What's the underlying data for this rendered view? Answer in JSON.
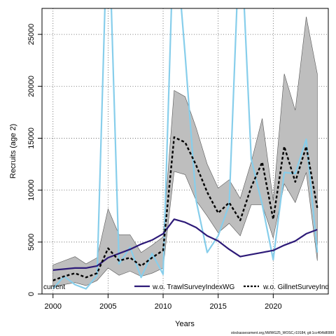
{
  "chart_data": {
    "type": "line",
    "xlabel": "Years",
    "ylabel": "Recruits (age 2)",
    "xlim": [
      1999,
      2025
    ],
    "ylim": [
      0,
      27500
    ],
    "x_ticks": [
      2000,
      2005,
      2010,
      2015,
      2020
    ],
    "y_ticks": [
      0,
      5000,
      10000,
      15000,
      20000,
      25000
    ],
    "grid": true,
    "legend_placement": "bottom",
    "x": [
      2000,
      2001,
      2002,
      2003,
      2004,
      2005,
      2006,
      2007,
      2008,
      2009,
      2010,
      2011,
      2012,
      2013,
      2014,
      2015,
      2016,
      2017,
      2018,
      2019,
      2020,
      2021,
      2022,
      2023,
      2024
    ],
    "band": {
      "upper": [
        2800,
        3200,
        3600,
        2900,
        3500,
        8200,
        5700,
        5700,
        4000,
        4700,
        5500,
        19600,
        19000,
        16000,
        12500,
        10200,
        11000,
        9200,
        12700,
        16900,
        9000,
        21200,
        17700,
        26700,
        21200
      ],
      "lower": [
        700,
        900,
        1100,
        800,
        1300,
        2500,
        1800,
        2200,
        1700,
        2000,
        2500,
        11800,
        11500,
        9000,
        7500,
        5900,
        6800,
        5600,
        8600,
        8600,
        5400,
        10600,
        8800,
        11700,
        3200
      ],
      "color": "#bebebe"
    },
    "series": [
      {
        "name": "current",
        "style": "dashed",
        "color": "#000000",
        "values": [
          1300,
          1700,
          2000,
          1600,
          2000,
          4400,
          3200,
          3500,
          2700,
          3500,
          4200,
          15100,
          14600,
          12400,
          9800,
          7800,
          8800,
          7100,
          10300,
          12700,
          7200,
          14200,
          10800,
          14200,
          8300
        ]
      },
      {
        "name": "w.o. TrawlSurveyIndexWG",
        "style": "solid",
        "color": "#2d1a78",
        "values": [
          2300,
          2400,
          2500,
          2500,
          2700,
          3500,
          3900,
          4300,
          4800,
          5200,
          5800,
          7200,
          6900,
          6400,
          5600,
          5100,
          4300,
          3600,
          3800,
          4000,
          4200,
          4700,
          5100,
          5800,
          6200
        ]
      },
      {
        "name": "w.o. GillnetSurveyIndex",
        "style": "solid",
        "color": "#87ceeb",
        "values": [
          500,
          1700,
          900,
          500,
          1800,
          38000,
          2900,
          4500,
          1600,
          3900,
          1900,
          36000,
          23000,
          9000,
          4000,
          5600,
          8600,
          36000,
          13000,
          8600,
          3300,
          11700,
          11600,
          14900,
          4000
        ]
      }
    ],
    "footer_note": "stockassessment.org,NWWG25_WOSC,r19184, git:1cc464b8086f"
  }
}
